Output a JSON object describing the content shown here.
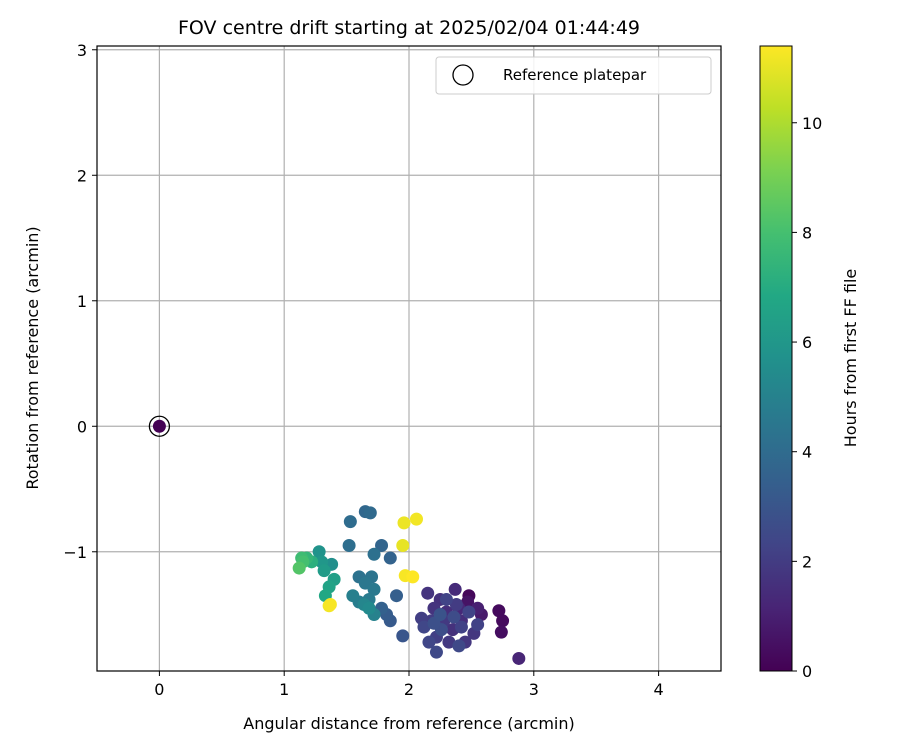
{
  "chart_data": {
    "type": "scatter",
    "title": "FOV centre drift starting at 2025/02/04 01:44:49",
    "xlabel": "Angular distance from reference (arcmin)",
    "ylabel": "Rotation from reference (arcmin)",
    "xlim": [
      -0.5,
      4.5
    ],
    "ylim": [
      -1.95,
      3.03
    ],
    "xticks": [
      0,
      1,
      2,
      3,
      4
    ],
    "yticks": [
      -1,
      0,
      1,
      2,
      3
    ],
    "grid": true,
    "legend": {
      "placement": "top-right",
      "entries": [
        "Reference platepar"
      ]
    },
    "colorbar": {
      "label": "Hours from first FF file",
      "range": [
        0,
        11.4
      ],
      "ticks": [
        0,
        2,
        4,
        6,
        8,
        10
      ],
      "colormap": "viridis"
    },
    "reference_point": {
      "x": 0,
      "y": 0,
      "hours": 0
    },
    "points": [
      {
        "x": 2.48,
        "y": -1.35,
        "h": 0.2
      },
      {
        "x": 2.72,
        "y": -1.47,
        "h": 0.3
      },
      {
        "x": 2.75,
        "y": -1.55,
        "h": 0.3
      },
      {
        "x": 2.74,
        "y": -1.64,
        "h": 0.4
      },
      {
        "x": 2.47,
        "y": -1.4,
        "h": 0.6
      },
      {
        "x": 2.58,
        "y": -1.5,
        "h": 0.8
      },
      {
        "x": 2.55,
        "y": -1.45,
        "h": 1.0
      },
      {
        "x": 2.88,
        "y": -1.85,
        "h": 1.2
      },
      {
        "x": 2.4,
        "y": -1.45,
        "h": 1.3
      },
      {
        "x": 2.37,
        "y": -1.3,
        "h": 1.4
      },
      {
        "x": 2.3,
        "y": -1.48,
        "h": 1.5
      },
      {
        "x": 2.42,
        "y": -1.55,
        "h": 1.5
      },
      {
        "x": 2.35,
        "y": -1.62,
        "h": 1.6
      },
      {
        "x": 2.25,
        "y": -1.38,
        "h": 1.6
      },
      {
        "x": 2.15,
        "y": -1.33,
        "h": 1.7
      },
      {
        "x": 2.2,
        "y": -1.45,
        "h": 1.7
      },
      {
        "x": 2.45,
        "y": -1.72,
        "h": 1.8
      },
      {
        "x": 2.52,
        "y": -1.65,
        "h": 1.8
      },
      {
        "x": 2.32,
        "y": -1.72,
        "h": 1.9
      },
      {
        "x": 2.28,
        "y": -1.55,
        "h": 1.9
      },
      {
        "x": 2.38,
        "y": -1.42,
        "h": 2.0
      },
      {
        "x": 2.18,
        "y": -1.55,
        "h": 2.0
      },
      {
        "x": 2.1,
        "y": -1.53,
        "h": 2.1
      },
      {
        "x": 2.22,
        "y": -1.68,
        "h": 2.1
      },
      {
        "x": 2.42,
        "y": -1.6,
        "h": 2.2
      },
      {
        "x": 2.55,
        "y": -1.58,
        "h": 2.2
      },
      {
        "x": 2.48,
        "y": -1.48,
        "h": 2.3
      },
      {
        "x": 2.3,
        "y": -1.38,
        "h": 2.3
      },
      {
        "x": 2.12,
        "y": -1.6,
        "h": 2.4
      },
      {
        "x": 2.16,
        "y": -1.72,
        "h": 2.4
      },
      {
        "x": 2.22,
        "y": -1.8,
        "h": 2.5
      },
      {
        "x": 2.4,
        "y": -1.75,
        "h": 2.5
      },
      {
        "x": 2.36,
        "y": -1.52,
        "h": 2.6
      },
      {
        "x": 2.26,
        "y": -1.62,
        "h": 2.7
      },
      {
        "x": 2.2,
        "y": -1.57,
        "h": 2.8
      },
      {
        "x": 2.25,
        "y": -1.5,
        "h": 2.9
      },
      {
        "x": 1.95,
        "y": -1.67,
        "h": 3.0
      },
      {
        "x": 1.85,
        "y": -1.55,
        "h": 3.2
      },
      {
        "x": 1.82,
        "y": -1.5,
        "h": 3.3
      },
      {
        "x": 1.9,
        "y": -1.35,
        "h": 3.4
      },
      {
        "x": 1.78,
        "y": -1.45,
        "h": 3.5
      },
      {
        "x": 1.85,
        "y": -1.05,
        "h": 3.6
      },
      {
        "x": 1.78,
        "y": -0.95,
        "h": 3.7
      },
      {
        "x": 1.65,
        "y": -0.68,
        "h": 3.8
      },
      {
        "x": 1.69,
        "y": -0.69,
        "h": 3.9
      },
      {
        "x": 1.53,
        "y": -0.76,
        "h": 4.0
      },
      {
        "x": 1.52,
        "y": -0.95,
        "h": 4.1
      },
      {
        "x": 1.72,
        "y": -1.02,
        "h": 4.2
      },
      {
        "x": 1.6,
        "y": -1.2,
        "h": 4.3
      },
      {
        "x": 1.7,
        "y": -1.2,
        "h": 4.4
      },
      {
        "x": 1.65,
        "y": -1.25,
        "h": 4.5
      },
      {
        "x": 1.72,
        "y": -1.3,
        "h": 4.6
      },
      {
        "x": 1.68,
        "y": -1.38,
        "h": 4.7
      },
      {
        "x": 1.6,
        "y": -1.4,
        "h": 4.8
      },
      {
        "x": 1.55,
        "y": -1.35,
        "h": 4.9
      },
      {
        "x": 1.72,
        "y": -1.5,
        "h": 5.0
      },
      {
        "x": 1.64,
        "y": -1.42,
        "h": 5.2
      },
      {
        "x": 1.68,
        "y": -1.45,
        "h": 5.4
      },
      {
        "x": 1.38,
        "y": -1.1,
        "h": 5.6
      },
      {
        "x": 1.28,
        "y": -1.0,
        "h": 5.8
      },
      {
        "x": 1.3,
        "y": -1.08,
        "h": 6.0
      },
      {
        "x": 1.32,
        "y": -1.15,
        "h": 6.2
      },
      {
        "x": 1.4,
        "y": -1.22,
        "h": 6.4
      },
      {
        "x": 1.36,
        "y": -1.28,
        "h": 6.6
      },
      {
        "x": 1.33,
        "y": -1.35,
        "h": 6.8
      },
      {
        "x": 1.22,
        "y": -1.08,
        "h": 7.2
      },
      {
        "x": 1.18,
        "y": -1.05,
        "h": 7.5
      },
      {
        "x": 1.14,
        "y": -1.05,
        "h": 7.8
      },
      {
        "x": 1.15,
        "y": -1.08,
        "h": 8.0
      },
      {
        "x": 1.12,
        "y": -1.13,
        "h": 8.3
      },
      {
        "x": 1.36,
        "y": -1.43,
        "h": 11.2
      },
      {
        "x": 1.37,
        "y": -1.42,
        "h": 11.3
      },
      {
        "x": 1.95,
        "y": -0.95,
        "h": 11.0
      },
      {
        "x": 1.96,
        "y": -0.77,
        "h": 11.1
      },
      {
        "x": 2.06,
        "y": -0.74,
        "h": 11.2
      },
      {
        "x": 1.97,
        "y": -1.19,
        "h": 11.3
      },
      {
        "x": 2.03,
        "y": -1.2,
        "h": 11.4
      }
    ]
  }
}
